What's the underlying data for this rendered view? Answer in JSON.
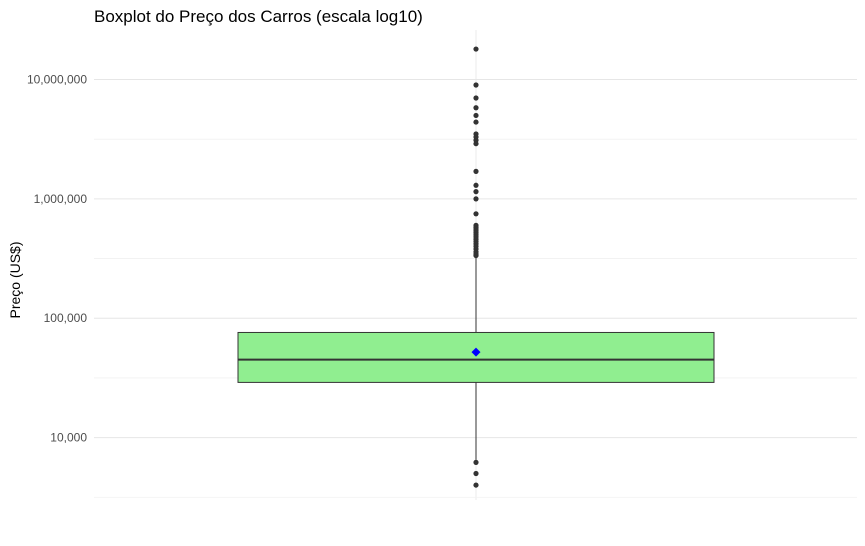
{
  "chart_data": {
    "type": "boxplot",
    "title": "Boxplot do Preço dos Carros (escala log10)",
    "xlabel": "",
    "ylabel": "Preço (US$)",
    "y_scale": "log10",
    "ylim": [
      3000,
      26000000
    ],
    "y_ticks": [
      10000,
      100000,
      1000000,
      10000000
    ],
    "y_tick_labels": [
      "10,000",
      "100,000",
      "1,000,000",
      "10,000,000"
    ],
    "grid": true,
    "box": {
      "q1": 29000,
      "median": 45000,
      "q3": 76000,
      "whisker_low": 6500,
      "whisker_high": 320000,
      "mean": 52000,
      "fill_color": "#90EE90",
      "mean_color": "#0000ff"
    },
    "outliers": [
      18000000,
      9000000,
      7000000,
      5800000,
      5000000,
      4400000,
      3500000,
      3300000,
      3100000,
      2900000,
      1700000,
      1300000,
      1150000,
      1000000,
      750000,
      600000,
      580000,
      560000,
      540000,
      520000,
      500000,
      480000,
      460000,
      440000,
      420000,
      400000,
      380000,
      360000,
      345000,
      335000,
      6200,
      5000,
      4000
    ]
  }
}
